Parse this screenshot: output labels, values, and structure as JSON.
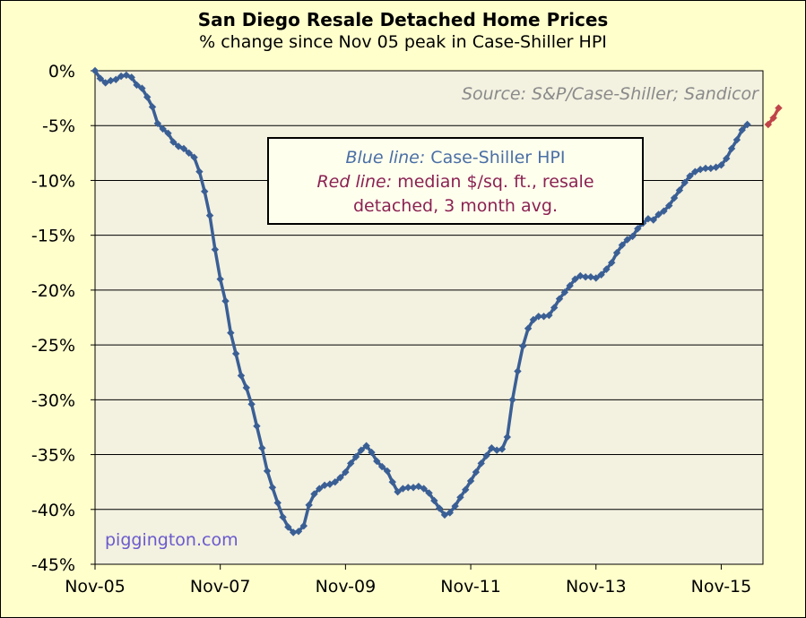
{
  "chart_data": {
    "type": "line",
    "title": "San Diego Resale Detached Home Prices",
    "subtitle": "% change since Nov 05 peak in Case-Shiller HPI",
    "source": "Source: S&P/Case-Shiller; Sandicor",
    "watermark": "piggington.com",
    "legend": {
      "blue_prefix": "Blue line:",
      "blue_text": " Case-Shiller HPI",
      "red_prefix": "Red line:",
      "red_text": " median $/sq. ft., resale detached, 3 month avg."
    },
    "ylim": [
      -45,
      0
    ],
    "yticks": [
      "0%",
      "-5%",
      "-10%",
      "-15%",
      "-20%",
      "-25%",
      "-30%",
      "-35%",
      "-40%",
      "-45%"
    ],
    "xticks": [
      "Nov-05",
      "Nov-07",
      "Nov-09",
      "Nov-11",
      "Nov-13",
      "Nov-15"
    ],
    "xlabel": "",
    "ylabel": "",
    "grid": true,
    "colors": {
      "blue": "#3a5f95",
      "red": "#c0444a",
      "plot_bg": "#f3f1e0",
      "page_bg": "#ffffcc"
    },
    "series": [
      {
        "name": "Case-Shiller HPI",
        "color": "#3a5f95",
        "start": "Nov-05",
        "values": [
          0.0,
          -0.7,
          -1.1,
          -0.9,
          -0.8,
          -0.5,
          -0.4,
          -0.6,
          -1.3,
          -1.6,
          -2.4,
          -3.3,
          -4.8,
          -5.3,
          -5.7,
          -6.5,
          -6.9,
          -7.1,
          -7.5,
          -7.9,
          -9.2,
          -11.0,
          -13.2,
          -16.3,
          -19.0,
          -21.0,
          -23.9,
          -25.8,
          -27.8,
          -28.9,
          -30.4,
          -32.4,
          -34.4,
          -36.5,
          -38.0,
          -39.4,
          -40.7,
          -41.6,
          -42.1,
          -42.0,
          -41.5,
          -39.6,
          -38.6,
          -38.1,
          -37.8,
          -37.7,
          -37.5,
          -37.1,
          -36.6,
          -35.8,
          -35.2,
          -34.6,
          -34.2,
          -34.8,
          -35.6,
          -36.1,
          -36.5,
          -37.5,
          -38.4,
          -38.1,
          -38.0,
          -38.0,
          -37.9,
          -38.1,
          -38.5,
          -39.2,
          -39.9,
          -40.5,
          -40.3,
          -39.7,
          -38.9,
          -38.2,
          -37.4,
          -36.6,
          -35.8,
          -35.1,
          -34.4,
          -34.6,
          -34.5,
          -33.4,
          -30.0,
          -27.4,
          -25.1,
          -23.5,
          -22.7,
          -22.4,
          -22.4,
          -22.3,
          -21.6,
          -20.8,
          -20.2,
          -19.6,
          -19.0,
          -18.7,
          -18.8,
          -18.8,
          -18.9,
          -18.6,
          -18.1,
          -17.5,
          -16.6,
          -15.9,
          -15.4,
          -15.1,
          -14.4,
          -13.9,
          -13.5,
          -13.6,
          -13.1,
          -12.8,
          -12.3,
          -11.6,
          -10.9,
          -10.2,
          -9.6,
          -9.2,
          -9.0,
          -8.9,
          -8.9,
          -8.8,
          -8.6,
          -8.0,
          -7.1,
          -6.3,
          -5.4,
          -4.9
        ]
      },
      {
        "name": "median $/sq. ft., resale detached, 3 month avg.",
        "color": "#c0444a",
        "start": "Aug-16",
        "values": [
          -4.9,
          -4.3,
          -3.4
        ]
      }
    ]
  }
}
